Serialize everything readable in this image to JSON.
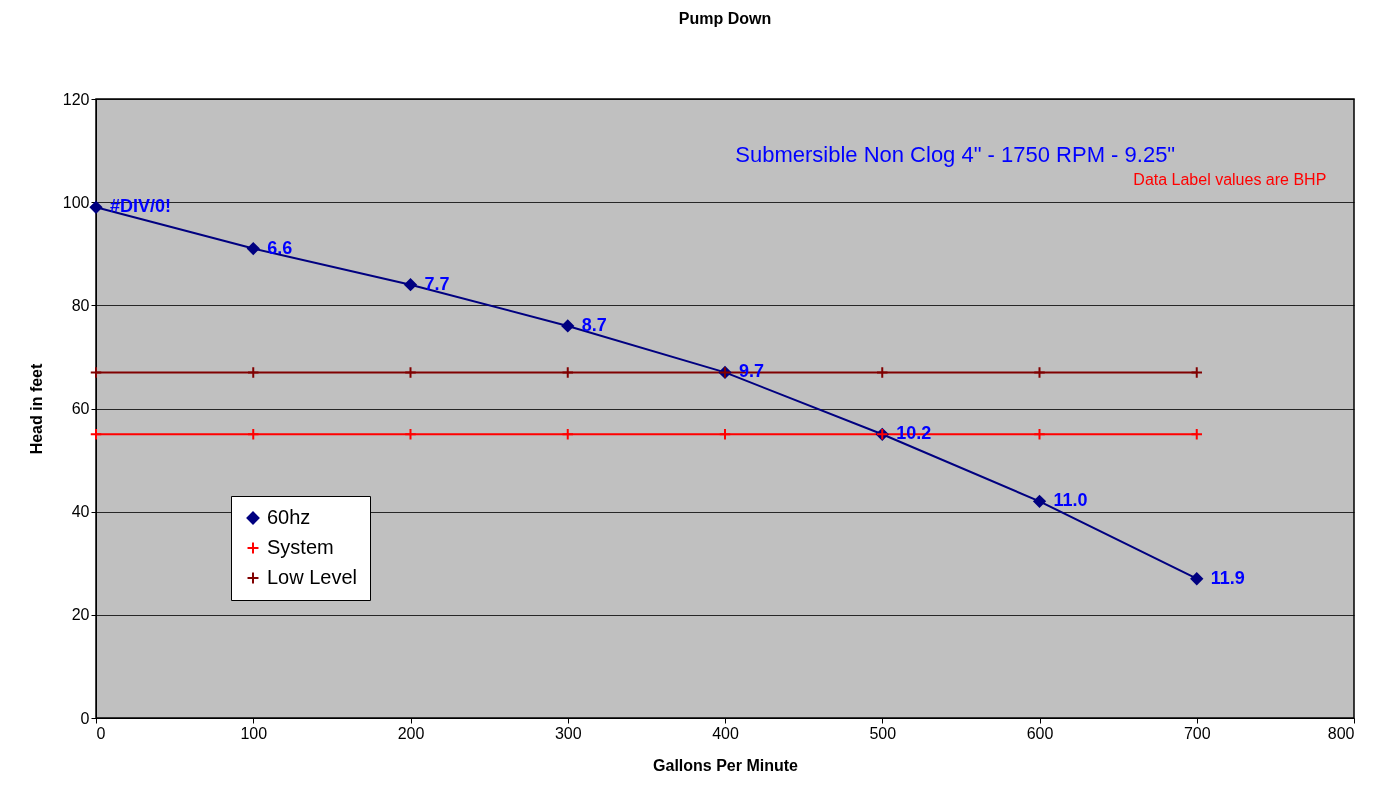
{
  "chart_data": {
    "type": "line",
    "title": "Pump Down",
    "xlabel": "Gallons Per Minute",
    "ylabel": "Head in feet",
    "annotations": [
      "Submersible Non Clog   4\"  - 1750 RPM  - 9.25\"",
      "Data Label values are BHP",
      {
        "text": "#DIV/0!",
        "x": 0,
        "y": 99
      },
      {
        "text": "6.6",
        "x": 100,
        "y": 91
      },
      {
        "text": "7.7",
        "x": 200,
        "y": 84
      },
      {
        "text": "8.7",
        "x": 300,
        "y": 76
      },
      {
        "text": "9.7",
        "x": 400,
        "y": 67
      },
      {
        "text": "10.2",
        "x": 500,
        "y": 55
      },
      {
        "text": "11.0",
        "x": 600,
        "y": 42
      },
      {
        "text": "11.9",
        "x": 700,
        "y": 27
      }
    ],
    "x": [
      0,
      100,
      200,
      300,
      400,
      500,
      600,
      700
    ],
    "series": [
      {
        "name": "60hz",
        "color": "#000080",
        "marker": "diamond",
        "values": [
          99,
          91,
          84,
          76,
          67,
          55,
          42,
          27
        ]
      },
      {
        "name": "System",
        "color": "#ff0000",
        "marker": "cross",
        "values": [
          55,
          55,
          55,
          55,
          55,
          55,
          55,
          55
        ]
      },
      {
        "name": "Low Level",
        "color": "#800000",
        "marker": "cross",
        "values": [
          67,
          67,
          67,
          67,
          67,
          67,
          67,
          67
        ]
      }
    ],
    "xlim": [
      0,
      800
    ],
    "xticks": [
      0,
      100,
      200,
      300,
      400,
      500,
      600,
      700,
      800
    ],
    "ylim": [
      0,
      120
    ],
    "yticks": [
      0,
      20,
      40,
      60,
      80,
      100,
      120
    ],
    "grid": "y",
    "legend": "bottom left"
  }
}
